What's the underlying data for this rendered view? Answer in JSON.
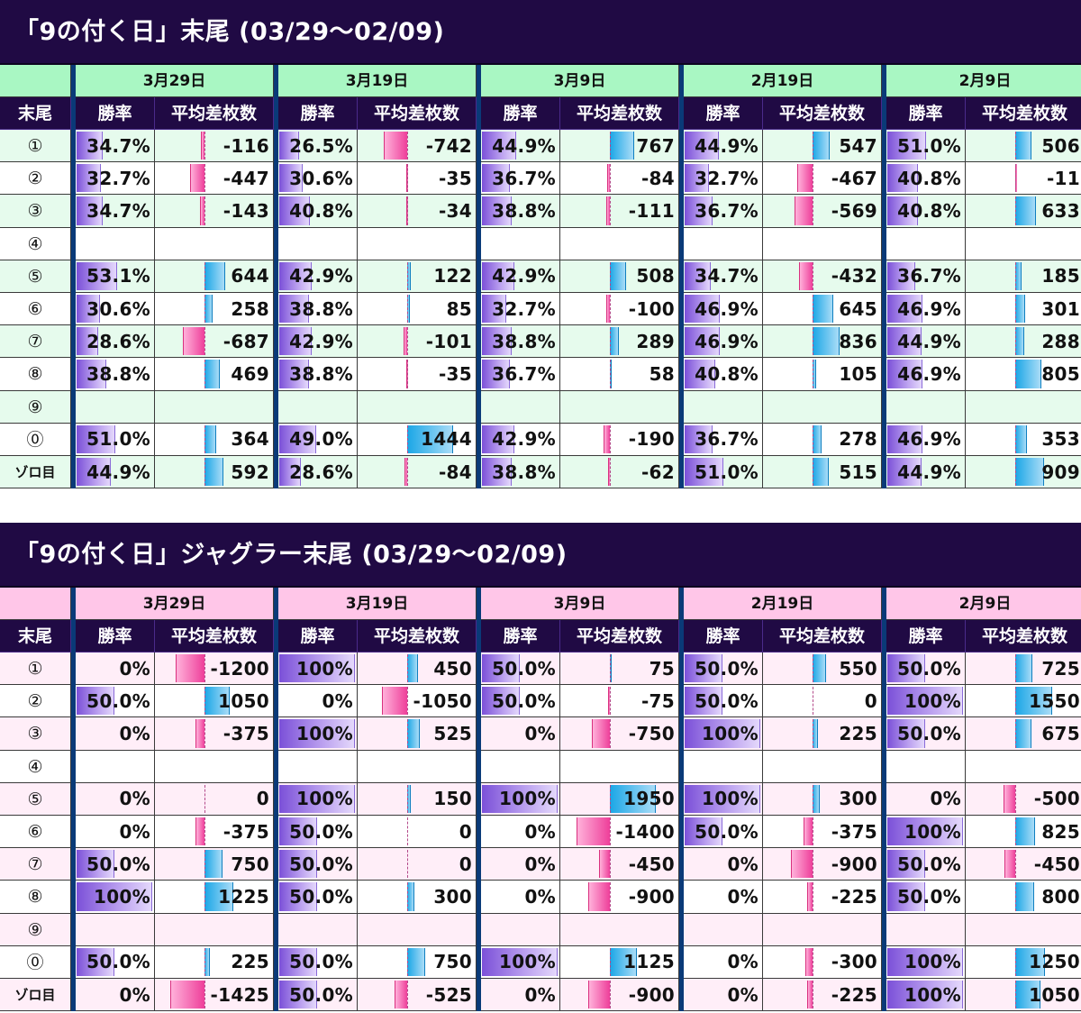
{
  "colors": {
    "banner_bg": "#200a44",
    "subheader_bg": "#200a44",
    "section1_header": "#a9f7c3",
    "section1_row_alt": "#e6fbed",
    "section2_header": "#ffc6e8",
    "section2_row_alt": "#ffeef8",
    "win_bar": "#9b6fe6",
    "positive_bar": "#1aa6e6",
    "negative_bar": "#ee3f9a",
    "separator": "#0a3a78"
  },
  "section1": {
    "title": "「9の付く日」末尾 (03/29～02/09)",
    "corner_label": "末尾",
    "dates": [
      "3月29日",
      "3月19日",
      "3月9日",
      "2月19日",
      "2月9日"
    ],
    "col_win": "勝率",
    "col_diff": "平均差枚数",
    "rows": [
      {
        "label": "①",
        "cells": [
          [
            "34.7%",
            "-116"
          ],
          [
            "26.5%",
            "-742"
          ],
          [
            "44.9%",
            "767"
          ],
          [
            "44.9%",
            "547"
          ],
          [
            "51.0%",
            "506"
          ]
        ]
      },
      {
        "label": "②",
        "cells": [
          [
            "32.7%",
            "-447"
          ],
          [
            "30.6%",
            "-35"
          ],
          [
            "36.7%",
            "-84"
          ],
          [
            "32.7%",
            "-467"
          ],
          [
            "40.8%",
            "-11"
          ]
        ]
      },
      {
        "label": "③",
        "cells": [
          [
            "34.7%",
            "-143"
          ],
          [
            "40.8%",
            "-34"
          ],
          [
            "38.8%",
            "-111"
          ],
          [
            "36.7%",
            "-569"
          ],
          [
            "40.8%",
            "633"
          ]
        ]
      },
      {
        "label": "④",
        "cells": [
          [
            "",
            ""
          ],
          [
            "",
            ""
          ],
          [
            "",
            ""
          ],
          [
            "",
            ""
          ],
          [
            "",
            ""
          ]
        ]
      },
      {
        "label": "⑤",
        "cells": [
          [
            "53.1%",
            "644"
          ],
          [
            "42.9%",
            "122"
          ],
          [
            "42.9%",
            "508"
          ],
          [
            "34.7%",
            "-432"
          ],
          [
            "36.7%",
            "185"
          ]
        ]
      },
      {
        "label": "⑥",
        "cells": [
          [
            "30.6%",
            "258"
          ],
          [
            "38.8%",
            "85"
          ],
          [
            "32.7%",
            "-100"
          ],
          [
            "46.9%",
            "645"
          ],
          [
            "46.9%",
            "301"
          ]
        ]
      },
      {
        "label": "⑦",
        "cells": [
          [
            "28.6%",
            "-687"
          ],
          [
            "42.9%",
            "-101"
          ],
          [
            "38.8%",
            "289"
          ],
          [
            "46.9%",
            "836"
          ],
          [
            "44.9%",
            "288"
          ]
        ]
      },
      {
        "label": "⑧",
        "cells": [
          [
            "38.8%",
            "469"
          ],
          [
            "38.8%",
            "-35"
          ],
          [
            "36.7%",
            "58"
          ],
          [
            "40.8%",
            "105"
          ],
          [
            "46.9%",
            "805"
          ]
        ]
      },
      {
        "label": "⑨",
        "cells": [
          [
            "",
            ""
          ],
          [
            "",
            ""
          ],
          [
            "",
            ""
          ],
          [
            "",
            ""
          ],
          [
            "",
            ""
          ]
        ]
      },
      {
        "label": "⓪",
        "cells": [
          [
            "51.0%",
            "364"
          ],
          [
            "49.0%",
            "1444"
          ],
          [
            "42.9%",
            "-190"
          ],
          [
            "36.7%",
            "278"
          ],
          [
            "46.9%",
            "353"
          ]
        ]
      },
      {
        "label": "ゾロ目",
        "cells": [
          [
            "44.9%",
            "592"
          ],
          [
            "28.6%",
            "-84"
          ],
          [
            "38.8%",
            "-62"
          ],
          [
            "51.0%",
            "515"
          ],
          [
            "44.9%",
            "909"
          ]
        ]
      }
    ]
  },
  "section2": {
    "title": "「9の付く日」ジャグラー末尾 (03/29～02/09)",
    "corner_label": "末尾",
    "dates": [
      "3月29日",
      "3月19日",
      "3月9日",
      "2月19日",
      "2月9日"
    ],
    "col_win": "勝率",
    "col_diff": "平均差枚数",
    "rows": [
      {
        "label": "①",
        "cells": [
          [
            "0%",
            "-1200"
          ],
          [
            "100%",
            "450"
          ],
          [
            "50.0%",
            "75"
          ],
          [
            "50.0%",
            "550"
          ],
          [
            "50.0%",
            "725"
          ]
        ]
      },
      {
        "label": "②",
        "cells": [
          [
            "50.0%",
            "1050"
          ],
          [
            "0%",
            "-1050"
          ],
          [
            "50.0%",
            "-75"
          ],
          [
            "50.0%",
            "0"
          ],
          [
            "100%",
            "1550"
          ]
        ]
      },
      {
        "label": "③",
        "cells": [
          [
            "0%",
            "-375"
          ],
          [
            "100%",
            "525"
          ],
          [
            "0%",
            "-750"
          ],
          [
            "100%",
            "225"
          ],
          [
            "50.0%",
            "675"
          ]
        ]
      },
      {
        "label": "④",
        "cells": [
          [
            "",
            ""
          ],
          [
            "",
            ""
          ],
          [
            "",
            ""
          ],
          [
            "",
            ""
          ],
          [
            "",
            ""
          ]
        ]
      },
      {
        "label": "⑤",
        "cells": [
          [
            "0%",
            "0"
          ],
          [
            "100%",
            "150"
          ],
          [
            "100%",
            "1950"
          ],
          [
            "100%",
            "300"
          ],
          [
            "0%",
            "-500"
          ]
        ]
      },
      {
        "label": "⑥",
        "cells": [
          [
            "0%",
            "-375"
          ],
          [
            "50.0%",
            "0"
          ],
          [
            "0%",
            "-1400"
          ],
          [
            "50.0%",
            "-375"
          ],
          [
            "100%",
            "825"
          ]
        ]
      },
      {
        "label": "⑦",
        "cells": [
          [
            "50.0%",
            "750"
          ],
          [
            "50.0%",
            "0"
          ],
          [
            "0%",
            "-450"
          ],
          [
            "0%",
            "-900"
          ],
          [
            "50.0%",
            "-450"
          ]
        ]
      },
      {
        "label": "⑧",
        "cells": [
          [
            "100%",
            "1225"
          ],
          [
            "50.0%",
            "300"
          ],
          [
            "0%",
            "-900"
          ],
          [
            "0%",
            "-225"
          ],
          [
            "50.0%",
            "800"
          ]
        ]
      },
      {
        "label": "⑨",
        "cells": [
          [
            "",
            ""
          ],
          [
            "",
            ""
          ],
          [
            "",
            ""
          ],
          [
            "",
            ""
          ],
          [
            "",
            ""
          ]
        ]
      },
      {
        "label": "⓪",
        "cells": [
          [
            "50.0%",
            "225"
          ],
          [
            "50.0%",
            "750"
          ],
          [
            "100%",
            "1125"
          ],
          [
            "0%",
            "-300"
          ],
          [
            "100%",
            "1250"
          ]
        ]
      },
      {
        "label": "ゾロ目",
        "cells": [
          [
            "0%",
            "-1425"
          ],
          [
            "50.0%",
            "-525"
          ],
          [
            "0%",
            "-900"
          ],
          [
            "0%",
            "-225"
          ],
          [
            "100%",
            "1050"
          ]
        ]
      }
    ]
  }
}
